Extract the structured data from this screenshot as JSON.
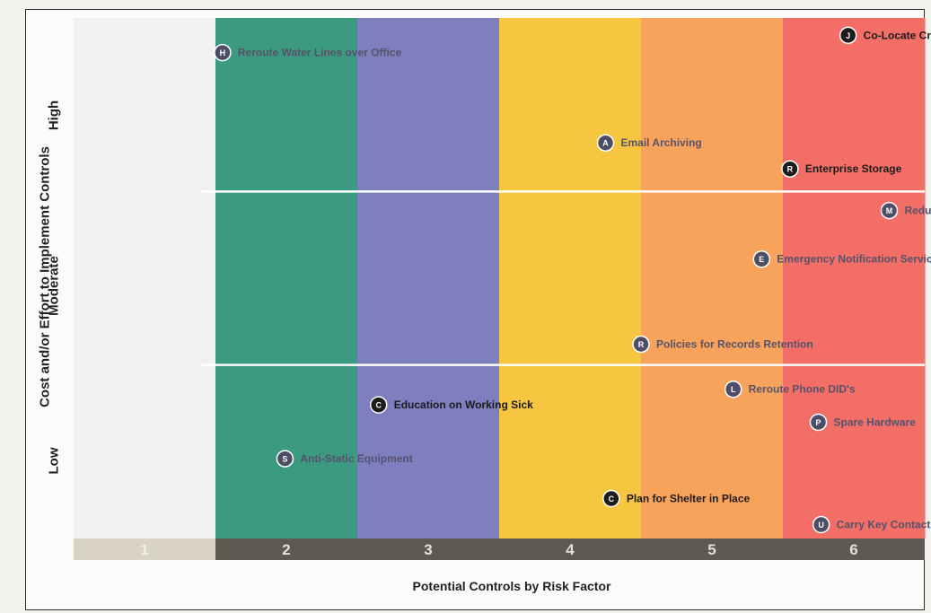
{
  "chart_data": {
    "type": "scatter",
    "title": "",
    "xlabel": "Potential Controls by Risk Factor",
    "ylabel": "Cost and/or Effort to Implement Controls",
    "x_categories": [
      "1",
      "2",
      "3",
      "4",
      "5",
      "6"
    ],
    "y_categories": [
      "Low",
      "Moderate",
      "High"
    ],
    "band_colors": [
      "#f1f0f2",
      "#3c9a80",
      "#7d7fbf",
      "#f7c640",
      "#f7a35b",
      "#f46e68"
    ],
    "points": [
      {
        "letter": "H",
        "label": "Reroute Water Lines over Office",
        "x": 1.55,
        "y": 2.8,
        "dark": false
      },
      {
        "letter": "J",
        "label": "Co-Locate Critical Systems",
        "x": 5.96,
        "y": 2.9,
        "dark": true
      },
      {
        "letter": "A",
        "label": "Email Archiving",
        "x": 4.25,
        "y": 2.28,
        "dark": false
      },
      {
        "letter": "R",
        "label": "Enterprise Storage",
        "x": 5.55,
        "y": 2.13,
        "dark": true
      },
      {
        "letter": "M",
        "label": "Redundant WAN",
        "x": 6.25,
        "y": 1.89,
        "dark": false
      },
      {
        "letter": "E",
        "label": "Emergency Notification Service",
        "x": 5.35,
        "y": 1.61,
        "dark": false
      },
      {
        "letter": "R",
        "label": "Policies for Records Retention",
        "x": 4.5,
        "y": 1.12,
        "dark": false
      },
      {
        "letter": "L",
        "label": "Reroute Phone DID's",
        "x": 5.15,
        "y": 0.86,
        "dark": false
      },
      {
        "letter": "C",
        "label": "Education on Working Sick",
        "x": 2.65,
        "y": 0.77,
        "dark": true
      },
      {
        "letter": "P",
        "label": "Spare Hardware",
        "x": 5.75,
        "y": 0.67,
        "dark": false
      },
      {
        "letter": "S",
        "label": "Anti-Static Equipment",
        "x": 1.99,
        "y": 0.46,
        "dark": false
      },
      {
        "letter": "C",
        "label": "Plan for Shelter in Place",
        "x": 4.29,
        "y": 0.23,
        "dark": true
      },
      {
        "letter": "U",
        "label": "Carry Key Contact Info",
        "x": 5.77,
        "y": 0.08,
        "dark": false
      }
    ]
  }
}
